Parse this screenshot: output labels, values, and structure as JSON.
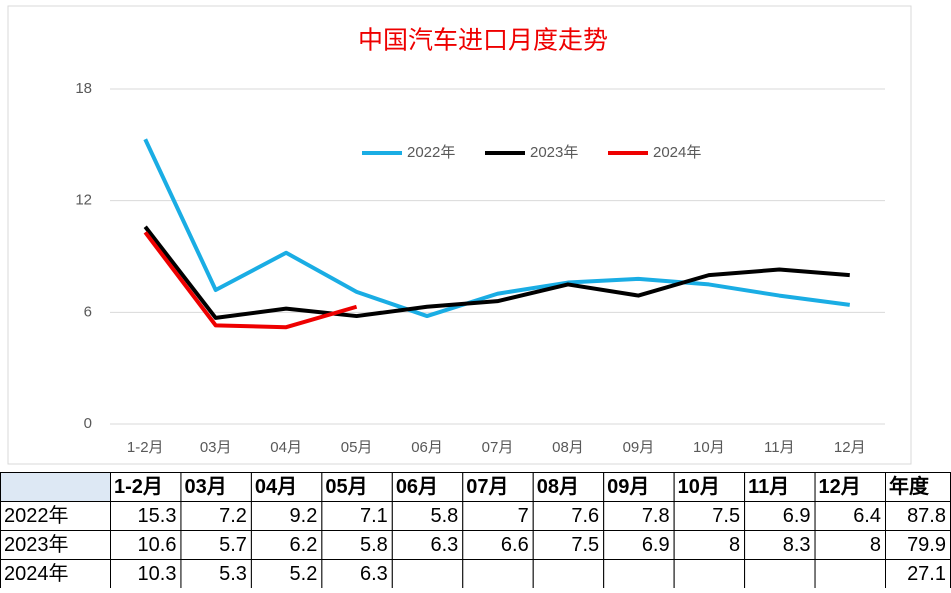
{
  "chart_data": {
    "type": "line",
    "title": "中国汽车进口月度走势",
    "categories": [
      "1-2月",
      "03月",
      "04月",
      "05月",
      "06月",
      "07月",
      "08月",
      "09月",
      "10月",
      "11月",
      "12月"
    ],
    "series": [
      {
        "name": "2022年",
        "color": "#1aade4",
        "values": [
          15.3,
          7.2,
          9.2,
          7.1,
          5.8,
          7,
          7.6,
          7.8,
          7.5,
          6.9,
          6.4
        ]
      },
      {
        "name": "2023年",
        "color": "#000000",
        "values": [
          10.6,
          5.7,
          6.2,
          5.8,
          6.3,
          6.6,
          7.5,
          6.9,
          8,
          8.3,
          8
        ]
      },
      {
        "name": "2024年",
        "color": "#ee0000",
        "values": [
          10.3,
          5.3,
          5.2,
          6.3,
          null,
          null,
          null,
          null,
          null,
          null,
          null
        ]
      }
    ],
    "ylim": [
      0,
      18
    ],
    "yticks": [
      0,
      6,
      12,
      18
    ],
    "grid": true
  },
  "table": {
    "total_header": "年度",
    "totals": [
      87.8,
      79.9,
      27.1
    ]
  }
}
